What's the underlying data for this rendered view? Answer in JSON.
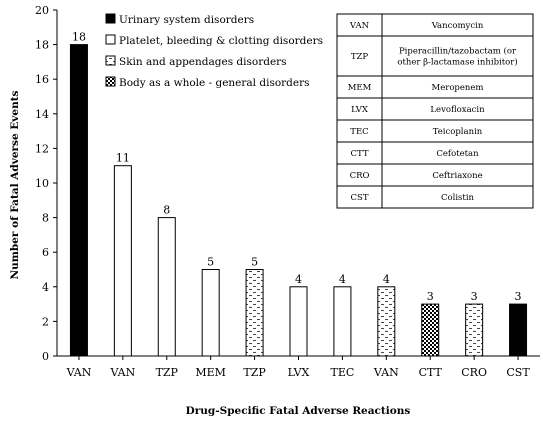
{
  "chart_data": {
    "type": "bar",
    "xlabel": "Drug-Specific Fatal Adverse Reactions",
    "ylabel": "Number of Fatal Adverse Events",
    "ylim": [
      0,
      20
    ],
    "yticks": [
      0,
      2,
      4,
      6,
      8,
      10,
      12,
      14,
      16,
      18,
      20
    ],
    "grid": false,
    "legend_position": "top-left",
    "categories": [
      "VAN",
      "VAN",
      "TZP",
      "MEM",
      "TZP",
      "LVX",
      "TEC",
      "VAN",
      "CTT",
      "CRO",
      "CST"
    ],
    "values": [
      18,
      11,
      8,
      5,
      5,
      4,
      4,
      4,
      3,
      3,
      3
    ],
    "groups": [
      "urinary",
      "platelet",
      "platelet",
      "platelet",
      "skin",
      "platelet",
      "platelet",
      "skin",
      "body",
      "skin",
      "urinary"
    ],
    "legend": [
      {
        "key": "urinary",
        "label": "Urinary system disorders",
        "fill": "solid",
        "color": "#000000"
      },
      {
        "key": "platelet",
        "label": "Platelet, bleeding & clotting disorders",
        "fill": "white",
        "color": "#ffffff"
      },
      {
        "key": "skin",
        "label": "Skin and appendages disorders",
        "fill": "dashed",
        "color": "#ffffff"
      },
      {
        "key": "body",
        "label": "Body as a whole - general disorders",
        "fill": "checker",
        "color": "#000000"
      }
    ],
    "abbreviations": [
      {
        "abbr": "VAN",
        "name": [
          "Vancomycin"
        ]
      },
      {
        "abbr": "TZP",
        "name": [
          "Piperacillin/tazobactam (or",
          "other β-lactamase inhibitor)"
        ]
      },
      {
        "abbr": "MEM",
        "name": [
          "Meropenem"
        ]
      },
      {
        "abbr": "LVX",
        "name": [
          "Levofloxacin"
        ]
      },
      {
        "abbr": "TEC",
        "name": [
          "Teicoplanin"
        ]
      },
      {
        "abbr": "CTT",
        "name": [
          "Cefotetan"
        ]
      },
      {
        "abbr": "CRO",
        "name": [
          "Ceftriaxone"
        ]
      },
      {
        "abbr": "CST",
        "name": [
          "Colistin"
        ]
      }
    ]
  }
}
